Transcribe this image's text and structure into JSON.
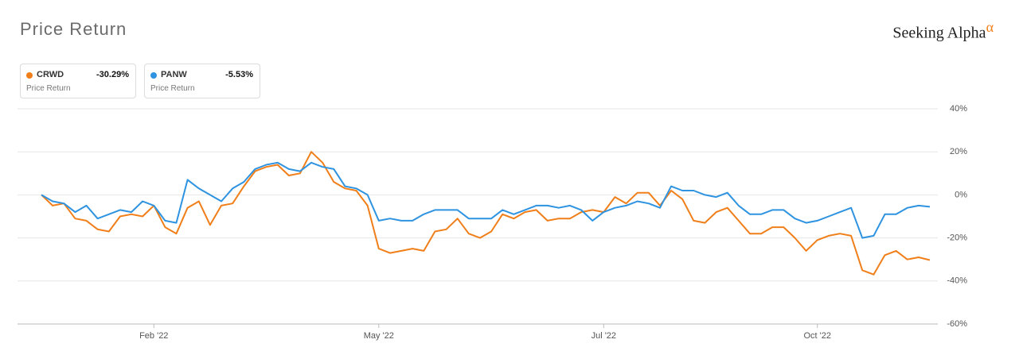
{
  "chart_data": {
    "type": "line",
    "title": "Price Return",
    "brand": "Seeking Alpha",
    "brand_mark": "α",
    "categories": [
      null,
      null,
      null,
      null,
      null,
      null,
      null,
      null,
      null,
      null,
      "Feb '22",
      null,
      null,
      null,
      null,
      null,
      null,
      null,
      null,
      null,
      null,
      null,
      null,
      null,
      null,
      null,
      null,
      null,
      null,
      null,
      "May '22",
      null,
      null,
      null,
      null,
      null,
      null,
      null,
      null,
      null,
      null,
      null,
      null,
      null,
      null,
      null,
      null,
      null,
      null,
      null,
      "Jul '22",
      null,
      null,
      null,
      null,
      null,
      null,
      null,
      null,
      null,
      null,
      null,
      null,
      null,
      null,
      null,
      null,
      null,
      null,
      "Oct '22",
      null,
      null,
      null,
      null,
      null,
      null,
      null,
      null,
      null,
      null
    ],
    "series": [
      {
        "name": "CRWD",
        "color": "#f07f1a",
        "return_label": "-30.29%",
        "caption": "Price Return",
        "values": [
          0,
          -5,
          -4,
          -11,
          -12,
          -16,
          -17,
          -10,
          -9,
          -10,
          -5,
          -15,
          -18,
          -6,
          -3,
          -14,
          -5,
          -4,
          4,
          11,
          13,
          14,
          9,
          10,
          20,
          15,
          6,
          3,
          2,
          -5,
          -25,
          -27,
          -26,
          -25,
          -26,
          -17,
          -16,
          -11,
          -18,
          -20,
          -17,
          -9,
          -11,
          -8,
          -7,
          -12,
          -11,
          -11,
          -8,
          -7,
          -8,
          -1,
          -4,
          1,
          1,
          -5,
          2,
          -2,
          -12,
          -13,
          -8,
          -6,
          -12,
          -18,
          -18,
          -15,
          -15,
          -20,
          -26,
          -21,
          -19,
          -18,
          -19,
          -35,
          -37,
          -28,
          -26,
          -30,
          -29,
          -30.29
        ]
      },
      {
        "name": "PANW",
        "color": "#2e93e0",
        "return_label": "-5.53%",
        "caption": "Price Return",
        "values": [
          0,
          -3,
          -4,
          -8,
          -5,
          -11,
          -9,
          -7,
          -8,
          -3,
          -5,
          -12,
          -13,
          7,
          3,
          0,
          -3,
          3,
          6,
          12,
          14,
          15,
          12,
          11,
          15,
          13,
          12,
          4,
          3,
          0,
          -12,
          -11,
          -12,
          -12,
          -9,
          -7,
          -7,
          -7,
          -11,
          -11,
          -11,
          -7,
          -9,
          -7,
          -5,
          -5,
          -6,
          -5,
          -7,
          -12,
          -8,
          -6,
          -5,
          -3,
          -4,
          -6,
          4,
          2,
          2,
          0,
          -1,
          1,
          -5,
          -9,
          -9,
          -7,
          -7,
          -11,
          -13,
          -12,
          -10,
          -8,
          -6,
          -20,
          -19,
          -9,
          -9,
          -6,
          -5,
          -5.53
        ]
      }
    ],
    "ylim": [
      -60,
      40
    ],
    "yticks": [
      {
        "value": -60,
        "label": "-60%"
      },
      {
        "value": -40,
        "label": "-40%"
      },
      {
        "value": -20,
        "label": "-20%"
      },
      {
        "value": 0,
        "label": "0%"
      },
      {
        "value": 20,
        "label": "20%"
      },
      {
        "value": 40,
        "label": "40%"
      }
    ],
    "grid": true
  }
}
